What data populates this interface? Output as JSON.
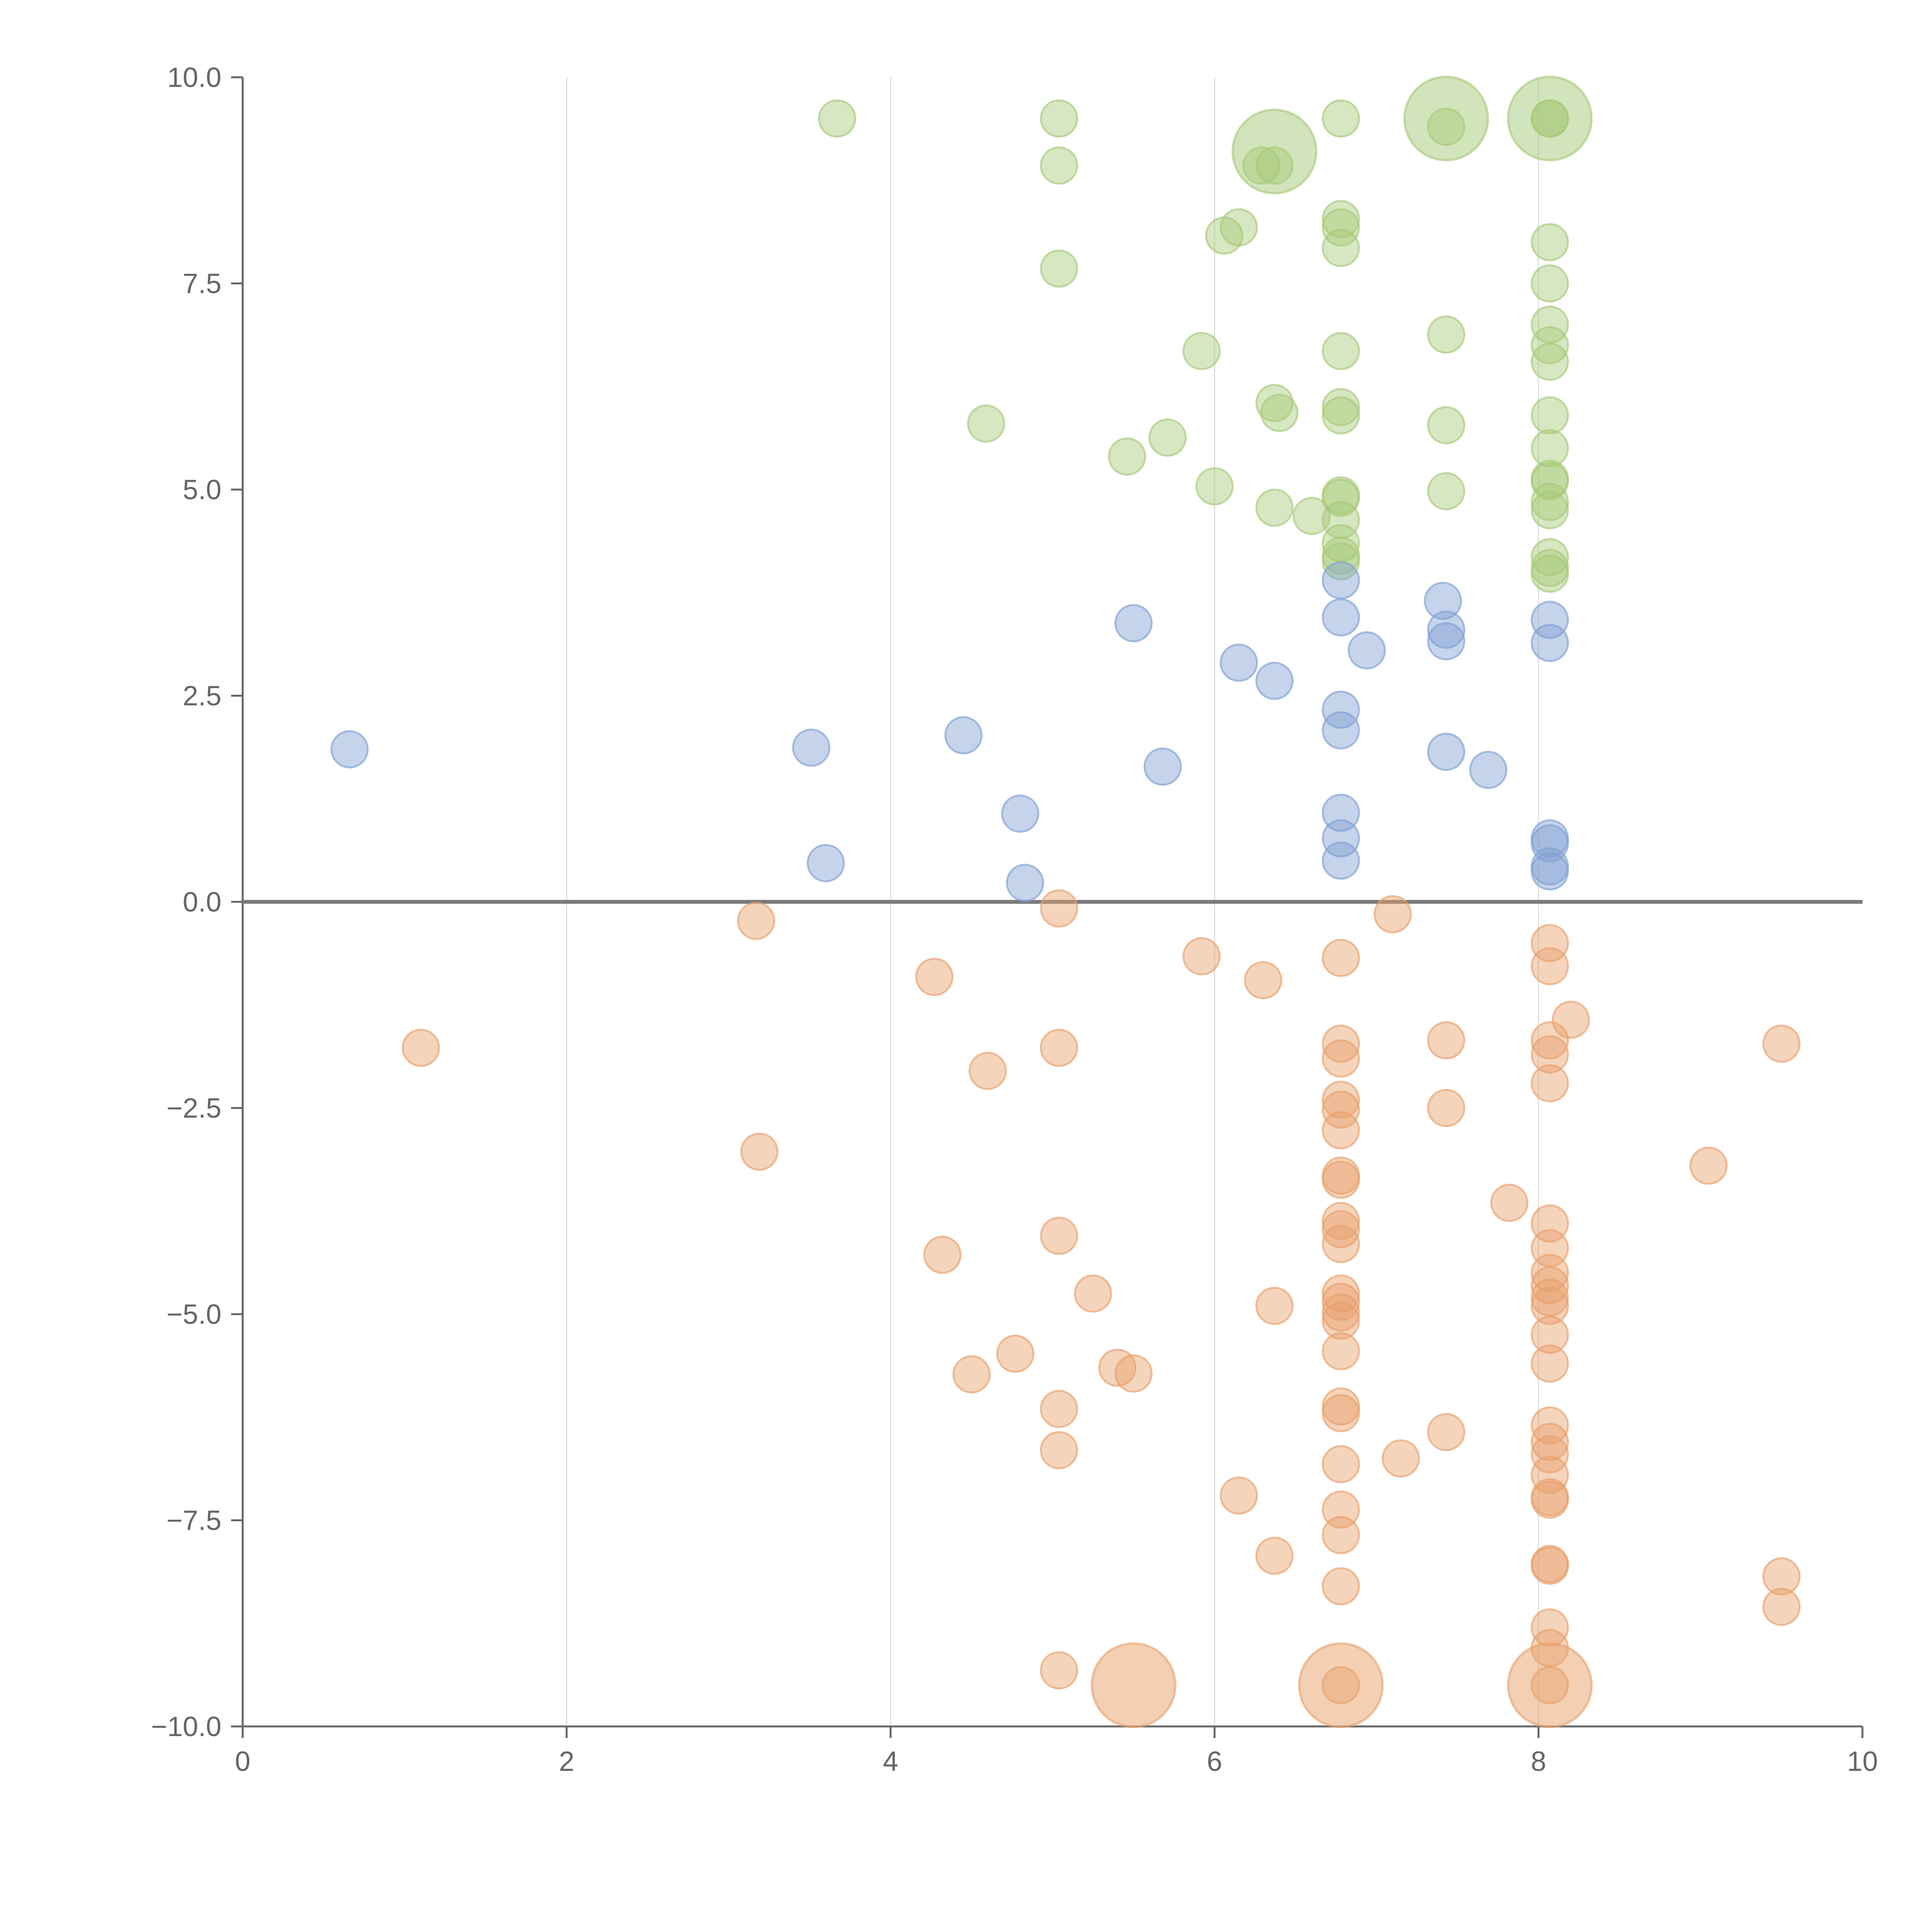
{
  "chart_data": {
    "type": "scatter",
    "title": "",
    "xlabel": "",
    "ylabel": "",
    "xlim": [
      0,
      10
    ],
    "ylim": [
      -10,
      10
    ],
    "grid": "vertical",
    "x_ticks": [
      "0",
      "2",
      "4",
      "6",
      "8",
      "10"
    ],
    "y_ticks": [
      "10.0",
      "7.5",
      "5.0",
      "2.5",
      "0.0",
      "−2.5",
      "−5.0",
      "−7.5",
      "−10.0"
    ],
    "series": [
      {
        "color": "#a6c978",
        "points": [
          [
            3.67,
            9.5
          ],
          [
            5.04,
            9.5
          ],
          [
            5.04,
            8.93
          ],
          [
            6.78,
            9.5
          ],
          [
            7.43,
            9.4
          ],
          [
            8.07,
            9.5
          ],
          [
            8.07,
            9.5
          ],
          [
            6.29,
            8.93
          ],
          [
            6.37,
            8.93
          ],
          [
            6.15,
            8.18
          ],
          [
            6.06,
            8.08
          ],
          [
            6.78,
            8.28
          ],
          [
            6.78,
            8.18
          ],
          [
            6.78,
            7.93
          ],
          [
            5.04,
            7.68
          ],
          [
            8.07,
            8.0
          ],
          [
            8.07,
            7.5
          ],
          [
            8.07,
            7.0
          ],
          [
            8.07,
            6.75
          ],
          [
            8.07,
            6.55
          ],
          [
            5.92,
            6.68
          ],
          [
            6.78,
            6.68
          ],
          [
            7.43,
            6.88
          ],
          [
            4.59,
            5.8
          ],
          [
            5.71,
            5.63
          ],
          [
            5.46,
            5.4
          ],
          [
            6.37,
            6.05
          ],
          [
            6.4,
            5.93
          ],
          [
            6.78,
            6.0
          ],
          [
            6.78,
            5.9
          ],
          [
            7.43,
            5.78
          ],
          [
            8.07,
            5.9
          ],
          [
            8.07,
            5.5
          ],
          [
            6.0,
            5.04
          ],
          [
            6.37,
            4.78
          ],
          [
            6.6,
            4.68
          ],
          [
            6.78,
            4.93
          ],
          [
            6.78,
            4.9
          ],
          [
            6.78,
            4.63
          ],
          [
            6.78,
            4.35
          ],
          [
            6.78,
            4.2
          ],
          [
            6.78,
            4.13
          ],
          [
            7.43,
            4.98
          ],
          [
            8.07,
            5.13
          ],
          [
            8.07,
            5.1
          ],
          [
            8.07,
            4.85
          ],
          [
            8.07,
            4.75
          ],
          [
            8.07,
            4.18
          ],
          [
            8.07,
            4.05
          ],
          [
            8.07,
            3.98
          ]
        ],
        "large": [
          [
            6.37,
            9.1
          ],
          [
            7.43,
            9.5
          ],
          [
            8.07,
            9.5
          ]
        ]
      },
      {
        "color": "#7fa0d2",
        "points": [
          [
            0.66,
            1.85
          ],
          [
            3.51,
            1.87
          ],
          [
            3.6,
            0.47
          ],
          [
            4.45,
            2.02
          ],
          [
            4.8,
            1.07
          ],
          [
            4.83,
            0.23
          ],
          [
            5.5,
            3.38
          ],
          [
            5.68,
            1.64
          ],
          [
            6.15,
            2.9
          ],
          [
            6.37,
            2.68
          ],
          [
            6.78,
            3.9
          ],
          [
            6.78,
            3.45
          ],
          [
            6.78,
            2.33
          ],
          [
            6.78,
            2.08
          ],
          [
            6.78,
            1.08
          ],
          [
            6.78,
            0.77
          ],
          [
            6.78,
            0.5
          ],
          [
            6.94,
            3.05
          ],
          [
            7.41,
            3.65
          ],
          [
            7.43,
            3.3
          ],
          [
            7.43,
            3.16
          ],
          [
            7.43,
            1.82
          ],
          [
            7.69,
            1.6
          ],
          [
            8.07,
            3.42
          ],
          [
            8.07,
            3.14
          ],
          [
            8.07,
            0.77
          ],
          [
            8.07,
            0.71
          ],
          [
            8.07,
            0.43
          ],
          [
            8.07,
            0.37
          ]
        ],
        "large": []
      },
      {
        "color": "#e8a06a",
        "points": [
          [
            1.1,
            -1.77
          ],
          [
            3.17,
            -0.23
          ],
          [
            3.19,
            -3.03
          ],
          [
            4.27,
            -0.91
          ],
          [
            4.32,
            -4.28
          ],
          [
            4.5,
            -5.73
          ],
          [
            4.6,
            -2.05
          ],
          [
            4.77,
            -5.48
          ],
          [
            5.04,
            -0.08
          ],
          [
            5.04,
            -1.77
          ],
          [
            5.04,
            -4.05
          ],
          [
            5.04,
            -6.15
          ],
          [
            5.04,
            -6.65
          ],
          [
            5.04,
            -9.32
          ],
          [
            5.25,
            -4.75
          ],
          [
            5.4,
            -5.65
          ],
          [
            5.5,
            -5.72
          ],
          [
            5.92,
            -0.66
          ],
          [
            6.15,
            -7.2
          ],
          [
            6.3,
            -0.95
          ],
          [
            6.37,
            -4.9
          ],
          [
            6.37,
            -7.93
          ],
          [
            6.78,
            -0.68
          ],
          [
            6.78,
            -1.72
          ],
          [
            6.78,
            -1.9
          ],
          [
            6.78,
            -2.4
          ],
          [
            6.78,
            -2.52
          ],
          [
            6.78,
            -2.77
          ],
          [
            6.78,
            -3.32
          ],
          [
            6.78,
            -3.37
          ],
          [
            6.78,
            -3.87
          ],
          [
            6.78,
            -3.97
          ],
          [
            6.78,
            -4.15
          ],
          [
            6.78,
            -4.75
          ],
          [
            6.78,
            -4.85
          ],
          [
            6.78,
            -4.98
          ],
          [
            6.78,
            -5.08
          ],
          [
            6.78,
            -5.45
          ],
          [
            6.78,
            -6.12
          ],
          [
            6.78,
            -6.2
          ],
          [
            6.78,
            -6.82
          ],
          [
            6.78,
            -7.37
          ],
          [
            6.78,
            -7.68
          ],
          [
            6.78,
            -8.3
          ],
          [
            6.78,
            -9.5
          ],
          [
            7.1,
            -0.15
          ],
          [
            7.15,
            -6.75
          ],
          [
            7.43,
            -1.68
          ],
          [
            7.43,
            -2.5
          ],
          [
            7.43,
            -6.43
          ],
          [
            7.82,
            -3.65
          ],
          [
            8.07,
            -0.5
          ],
          [
            8.07,
            -0.78
          ],
          [
            8.07,
            -1.68
          ],
          [
            8.07,
            -1.85
          ],
          [
            8.07,
            -2.2
          ],
          [
            8.07,
            -3.9
          ],
          [
            8.07,
            -4.2
          ],
          [
            8.07,
            -4.5
          ],
          [
            8.07,
            -4.65
          ],
          [
            8.07,
            -4.8
          ],
          [
            8.07,
            -4.9
          ],
          [
            8.07,
            -5.25
          ],
          [
            8.07,
            -5.6
          ],
          [
            8.07,
            -6.35
          ],
          [
            8.07,
            -6.55
          ],
          [
            8.07,
            -6.7
          ],
          [
            8.07,
            -6.95
          ],
          [
            8.07,
            -7.22
          ],
          [
            8.07,
            -7.25
          ],
          [
            8.07,
            -8.03
          ],
          [
            8.07,
            -8.05
          ],
          [
            8.07,
            -8.8
          ],
          [
            8.07,
            -9.05
          ],
          [
            8.07,
            -9.5
          ],
          [
            8.2,
            -1.43
          ],
          [
            9.05,
            -3.2
          ],
          [
            9.5,
            -1.72
          ],
          [
            9.5,
            -8.18
          ],
          [
            9.5,
            -8.55
          ]
        ],
        "large": [
          [
            5.5,
            -9.5
          ],
          [
            6.78,
            -9.5
          ],
          [
            8.07,
            -9.5
          ]
        ]
      }
    ]
  }
}
